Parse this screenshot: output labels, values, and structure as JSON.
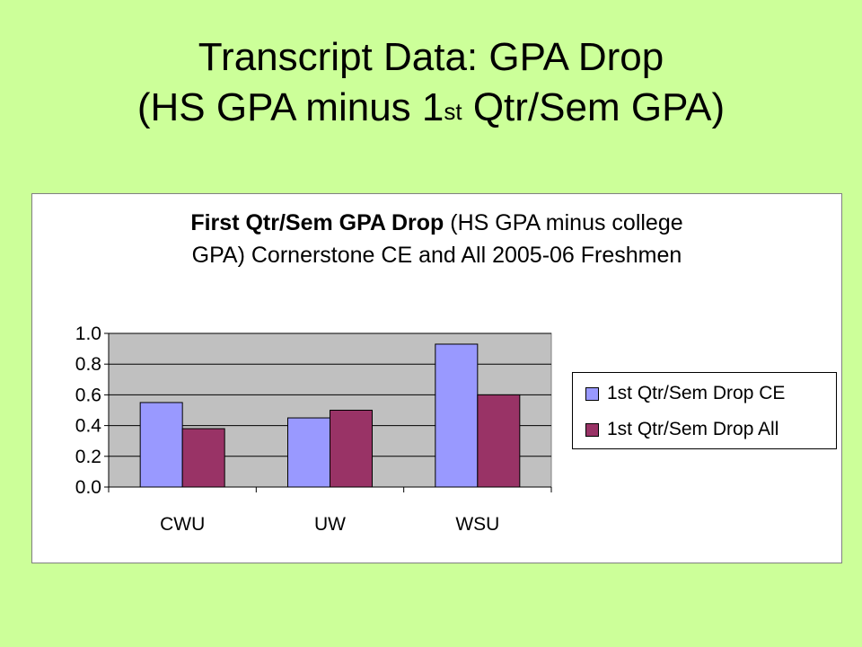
{
  "slide": {
    "title_line1": "Transcript Data: GPA Drop",
    "title_line2_pre": "(HS GPA minus 1",
    "title_line2_sup": "st",
    "title_line2_post": " Qtr/Sem GPA)"
  },
  "chart_data": {
    "type": "bar",
    "title_bold": "First Qtr/Sem GPA Drop",
    "title_rest_line1": " (HS GPA minus college",
    "title_line2": "GPA) Cornerstone CE and All 2005-06 Freshmen",
    "categories": [
      "CWU",
      "UW",
      "WSU"
    ],
    "series": [
      {
        "name": "1st Qtr/Sem Drop CE",
        "values": [
          0.55,
          0.45,
          0.93
        ],
        "color": "#9999ff"
      },
      {
        "name": "1st Qtr/Sem Drop All",
        "values": [
          0.38,
          0.5,
          0.6
        ],
        "color": "#993366"
      }
    ],
    "ylim": [
      0.0,
      1.0
    ],
    "yticks": [
      "0.0",
      "0.2",
      "0.4",
      "0.6",
      "0.8",
      "1.0"
    ],
    "grid": true,
    "plot_background": "#c0c0c0",
    "legend_position": "right"
  }
}
